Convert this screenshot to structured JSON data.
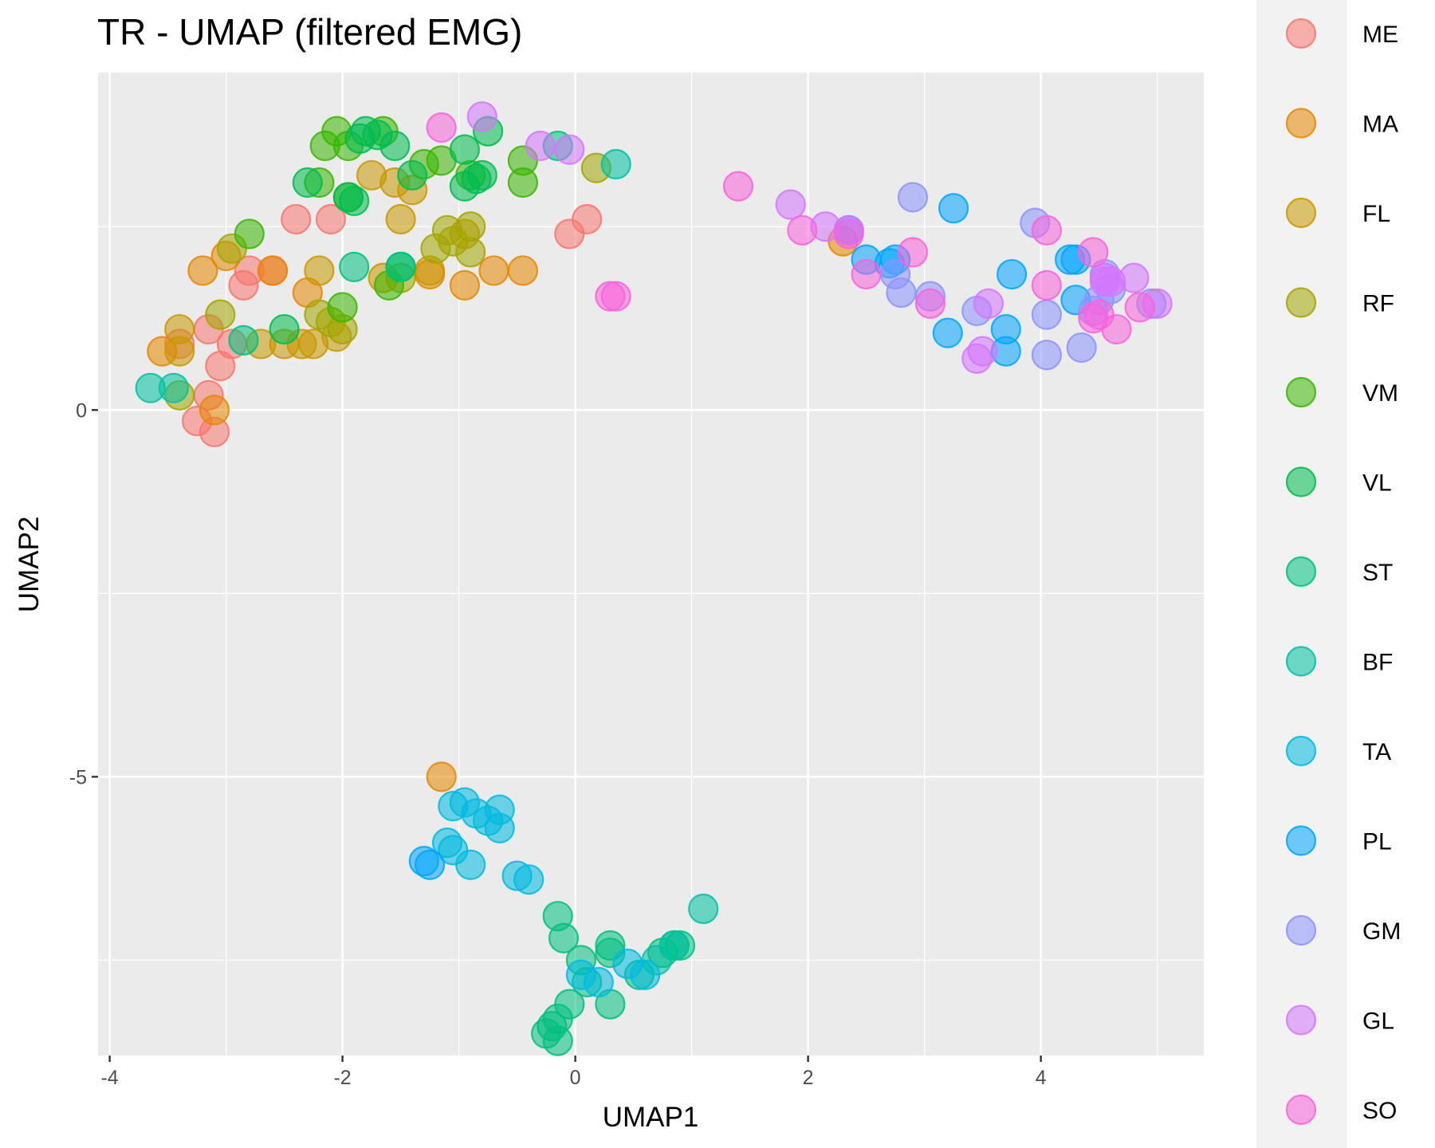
{
  "chart_data": {
    "type": "scatter",
    "title": "TR - UMAP (filtered EMG)",
    "xlabel": "UMAP1",
    "ylabel": "UMAP2",
    "xlim": [
      -4.1,
      5.4
    ],
    "ylim": [
      -8.8,
      4.6
    ],
    "x_ticks": [
      -4,
      -2,
      0,
      2,
      4
    ],
    "y_ticks": [
      -5,
      0
    ],
    "x_tick_labels": [
      "-4",
      "-2",
      "0",
      "2",
      "4"
    ],
    "y_tick_labels": [
      "-5",
      "0"
    ],
    "grid": true,
    "legend_position": "right",
    "point_opacity": 0.55,
    "series": [
      {
        "name": "ME",
        "color": "#F8766D",
        "points": [
          [
            -2.4,
            2.6
          ],
          [
            -2.1,
            2.6
          ],
          [
            -2.8,
            1.9
          ],
          [
            -2.6,
            1.9
          ],
          [
            -2.85,
            1.7
          ],
          [
            -3.15,
            1.1
          ],
          [
            -2.95,
            0.9
          ],
          [
            -3.4,
            0.9
          ],
          [
            -3.05,
            0.6
          ],
          [
            -3.15,
            0.2
          ],
          [
            -3.25,
            -0.15
          ],
          [
            -3.1,
            -0.3
          ],
          [
            0.1,
            2.6
          ],
          [
            -0.05,
            2.4
          ]
        ]
      },
      {
        "name": "MA",
        "color": "#E58700",
        "points": [
          [
            -3.2,
            1.9
          ],
          [
            -3.0,
            2.1
          ],
          [
            -2.6,
            1.9
          ],
          [
            -3.55,
            0.8
          ],
          [
            -3.1,
            0.0
          ],
          [
            -2.3,
            1.6
          ],
          [
            -1.25,
            1.85
          ],
          [
            -0.95,
            1.7
          ],
          [
            -0.7,
            1.9
          ],
          [
            -0.45,
            1.9
          ],
          [
            2.3,
            2.3
          ],
          [
            -1.15,
            -5.0
          ]
        ]
      },
      {
        "name": "FL",
        "color": "#C99800",
        "points": [
          [
            -1.75,
            3.2
          ],
          [
            -1.55,
            3.1
          ],
          [
            -1.4,
            3.0
          ],
          [
            -1.5,
            2.6
          ],
          [
            -2.5,
            0.9
          ],
          [
            -2.25,
            0.9
          ],
          [
            -2.05,
            1.0
          ],
          [
            -2.7,
            0.9
          ],
          [
            -2.35,
            0.9
          ],
          [
            -3.4,
            0.8
          ],
          [
            -3.4,
            1.1
          ],
          [
            -2.2,
            1.9
          ],
          [
            -1.65,
            1.8
          ],
          [
            -1.25,
            1.9
          ],
          [
            -0.95,
            2.4
          ]
        ]
      },
      {
        "name": "RF",
        "color": "#A3A500",
        "points": [
          [
            -3.05,
            1.3
          ],
          [
            -2.95,
            2.2
          ],
          [
            -1.1,
            2.45
          ],
          [
            -1.2,
            2.2
          ],
          [
            -1.05,
            2.3
          ],
          [
            -0.9,
            2.5
          ],
          [
            -0.9,
            2.15
          ],
          [
            -1.5,
            1.8
          ],
          [
            -2.2,
            1.3
          ],
          [
            -2.1,
            1.2
          ],
          [
            -2.0,
            1.1
          ],
          [
            -3.4,
            0.2
          ],
          [
            0.18,
            3.3
          ]
        ]
      },
      {
        "name": "VM",
        "color": "#39B600",
        "points": [
          [
            -2.05,
            3.8
          ],
          [
            -2.15,
            3.6
          ],
          [
            -1.95,
            3.6
          ],
          [
            -1.65,
            3.8
          ],
          [
            -2.2,
            3.1
          ],
          [
            -1.3,
            3.35
          ],
          [
            -1.15,
            3.4
          ],
          [
            -0.9,
            3.2
          ],
          [
            -0.45,
            3.4
          ],
          [
            -0.45,
            3.1
          ],
          [
            -1.6,
            1.7
          ],
          [
            -2.8,
            2.4
          ],
          [
            -2.0,
            1.4
          ],
          [
            -1.95,
            2.9
          ]
        ]
      },
      {
        "name": "VL",
        "color": "#00BB4E",
        "points": [
          [
            -1.8,
            3.8
          ],
          [
            -1.7,
            3.75
          ],
          [
            -1.85,
            3.7
          ],
          [
            -1.55,
            3.6
          ],
          [
            -2.3,
            3.1
          ],
          [
            -1.9,
            2.85
          ],
          [
            -1.4,
            3.2
          ],
          [
            -0.85,
            3.15
          ],
          [
            -0.8,
            3.2
          ],
          [
            -0.75,
            3.8
          ],
          [
            -0.95,
            3.55
          ],
          [
            -0.95,
            3.05
          ],
          [
            -1.5,
            1.95
          ],
          [
            -1.95,
            2.9
          ],
          [
            -2.5,
            1.1
          ]
        ]
      },
      {
        "name": "ST",
        "color": "#00BF7D",
        "points": [
          [
            -1.5,
            1.95
          ],
          [
            -1.9,
            1.95
          ],
          [
            -0.15,
            3.6
          ],
          [
            -2.85,
            0.95
          ],
          [
            -0.15,
            -6.9
          ],
          [
            -0.1,
            -7.2
          ],
          [
            0.05,
            -7.5
          ],
          [
            0.1,
            -7.8
          ],
          [
            0.3,
            -7.3
          ],
          [
            0.3,
            -7.4
          ],
          [
            0.55,
            -7.7
          ],
          [
            0.75,
            -7.4
          ],
          [
            0.85,
            -7.3
          ],
          [
            0.9,
            -7.3
          ],
          [
            0.3,
            -8.1
          ],
          [
            -0.05,
            -8.1
          ],
          [
            -0.15,
            -8.3
          ],
          [
            -0.2,
            -8.4
          ],
          [
            -0.25,
            -8.5
          ],
          [
            -0.15,
            -8.6
          ]
        ]
      },
      {
        "name": "BF",
        "color": "#00C1A3",
        "points": [
          [
            0.35,
            3.35
          ],
          [
            -3.65,
            0.3
          ],
          [
            -3.45,
            0.3
          ],
          [
            1.1,
            -6.8
          ],
          [
            0.85,
            -7.3
          ],
          [
            0.7,
            -7.5
          ]
        ]
      },
      {
        "name": "TA",
        "color": "#00BAE0",
        "points": [
          [
            -1.05,
            -5.4
          ],
          [
            -0.95,
            -5.35
          ],
          [
            -0.85,
            -5.5
          ],
          [
            -0.75,
            -5.6
          ],
          [
            -0.65,
            -5.45
          ],
          [
            -0.65,
            -5.7
          ],
          [
            -1.1,
            -5.9
          ],
          [
            -1.05,
            -6.0
          ],
          [
            -0.9,
            -6.2
          ],
          [
            -0.5,
            -6.35
          ],
          [
            -0.4,
            -6.4
          ],
          [
            0.05,
            -7.7
          ],
          [
            0.2,
            -7.8
          ],
          [
            0.45,
            -7.55
          ],
          [
            0.6,
            -7.7
          ]
        ]
      },
      {
        "name": "PL",
        "color": "#00A5FF",
        "points": [
          [
            2.35,
            2.45
          ],
          [
            2.5,
            2.05
          ],
          [
            2.7,
            2.0
          ],
          [
            2.75,
            2.05
          ],
          [
            3.25,
            2.75
          ],
          [
            3.75,
            1.85
          ],
          [
            4.25,
            2.05
          ],
          [
            4.3,
            2.05
          ],
          [
            4.3,
            1.5
          ],
          [
            3.2,
            1.05
          ],
          [
            3.7,
            1.1
          ],
          [
            3.7,
            0.8
          ],
          [
            -1.3,
            -6.15
          ],
          [
            -1.25,
            -6.2
          ]
        ]
      },
      {
        "name": "GM",
        "color": "#8B93FF",
        "points": [
          [
            2.9,
            2.9
          ],
          [
            2.75,
            1.85
          ],
          [
            2.8,
            1.6
          ],
          [
            3.05,
            1.55
          ],
          [
            3.45,
            1.35
          ],
          [
            3.95,
            2.55
          ],
          [
            4.05,
            1.3
          ],
          [
            4.05,
            0.75
          ],
          [
            4.35,
            0.85
          ],
          [
            4.45,
            1.35
          ],
          [
            4.5,
            1.5
          ],
          [
            4.6,
            1.65
          ],
          [
            4.55,
            1.85
          ],
          [
            4.95,
            1.45
          ]
        ]
      },
      {
        "name": "GL",
        "color": "#D575FE",
        "points": [
          [
            -0.8,
            4.0
          ],
          [
            -0.3,
            3.6
          ],
          [
            -0.05,
            3.55
          ],
          [
            1.85,
            2.8
          ],
          [
            2.15,
            2.5
          ],
          [
            2.35,
            2.45
          ],
          [
            3.55,
            1.45
          ],
          [
            3.5,
            0.8
          ],
          [
            3.45,
            0.7
          ],
          [
            4.55,
            1.75
          ],
          [
            4.6,
            1.75
          ],
          [
            4.55,
            1.8
          ],
          [
            4.8,
            1.8
          ],
          [
            5.0,
            1.45
          ]
        ]
      },
      {
        "name": "SO",
        "color": "#F962DD",
        "points": [
          [
            -1.15,
            3.85
          ],
          [
            1.4,
            3.05
          ],
          [
            1.95,
            2.45
          ],
          [
            2.35,
            2.4
          ],
          [
            2.5,
            1.85
          ],
          [
            2.9,
            2.15
          ],
          [
            3.05,
            1.45
          ],
          [
            4.05,
            2.45
          ],
          [
            4.45,
            2.15
          ],
          [
            4.05,
            1.7
          ],
          [
            4.5,
            1.3
          ],
          [
            4.45,
            1.25
          ],
          [
            4.65,
            1.1
          ],
          [
            4.85,
            1.4
          ],
          [
            0.3,
            1.55
          ],
          [
            0.35,
            1.55
          ]
        ]
      }
    ],
    "legend_order": [
      "ME",
      "MA",
      "FL",
      "RF",
      "VM",
      "VL",
      "ST",
      "BF",
      "TA",
      "PL",
      "GM",
      "GL",
      "SO"
    ]
  }
}
